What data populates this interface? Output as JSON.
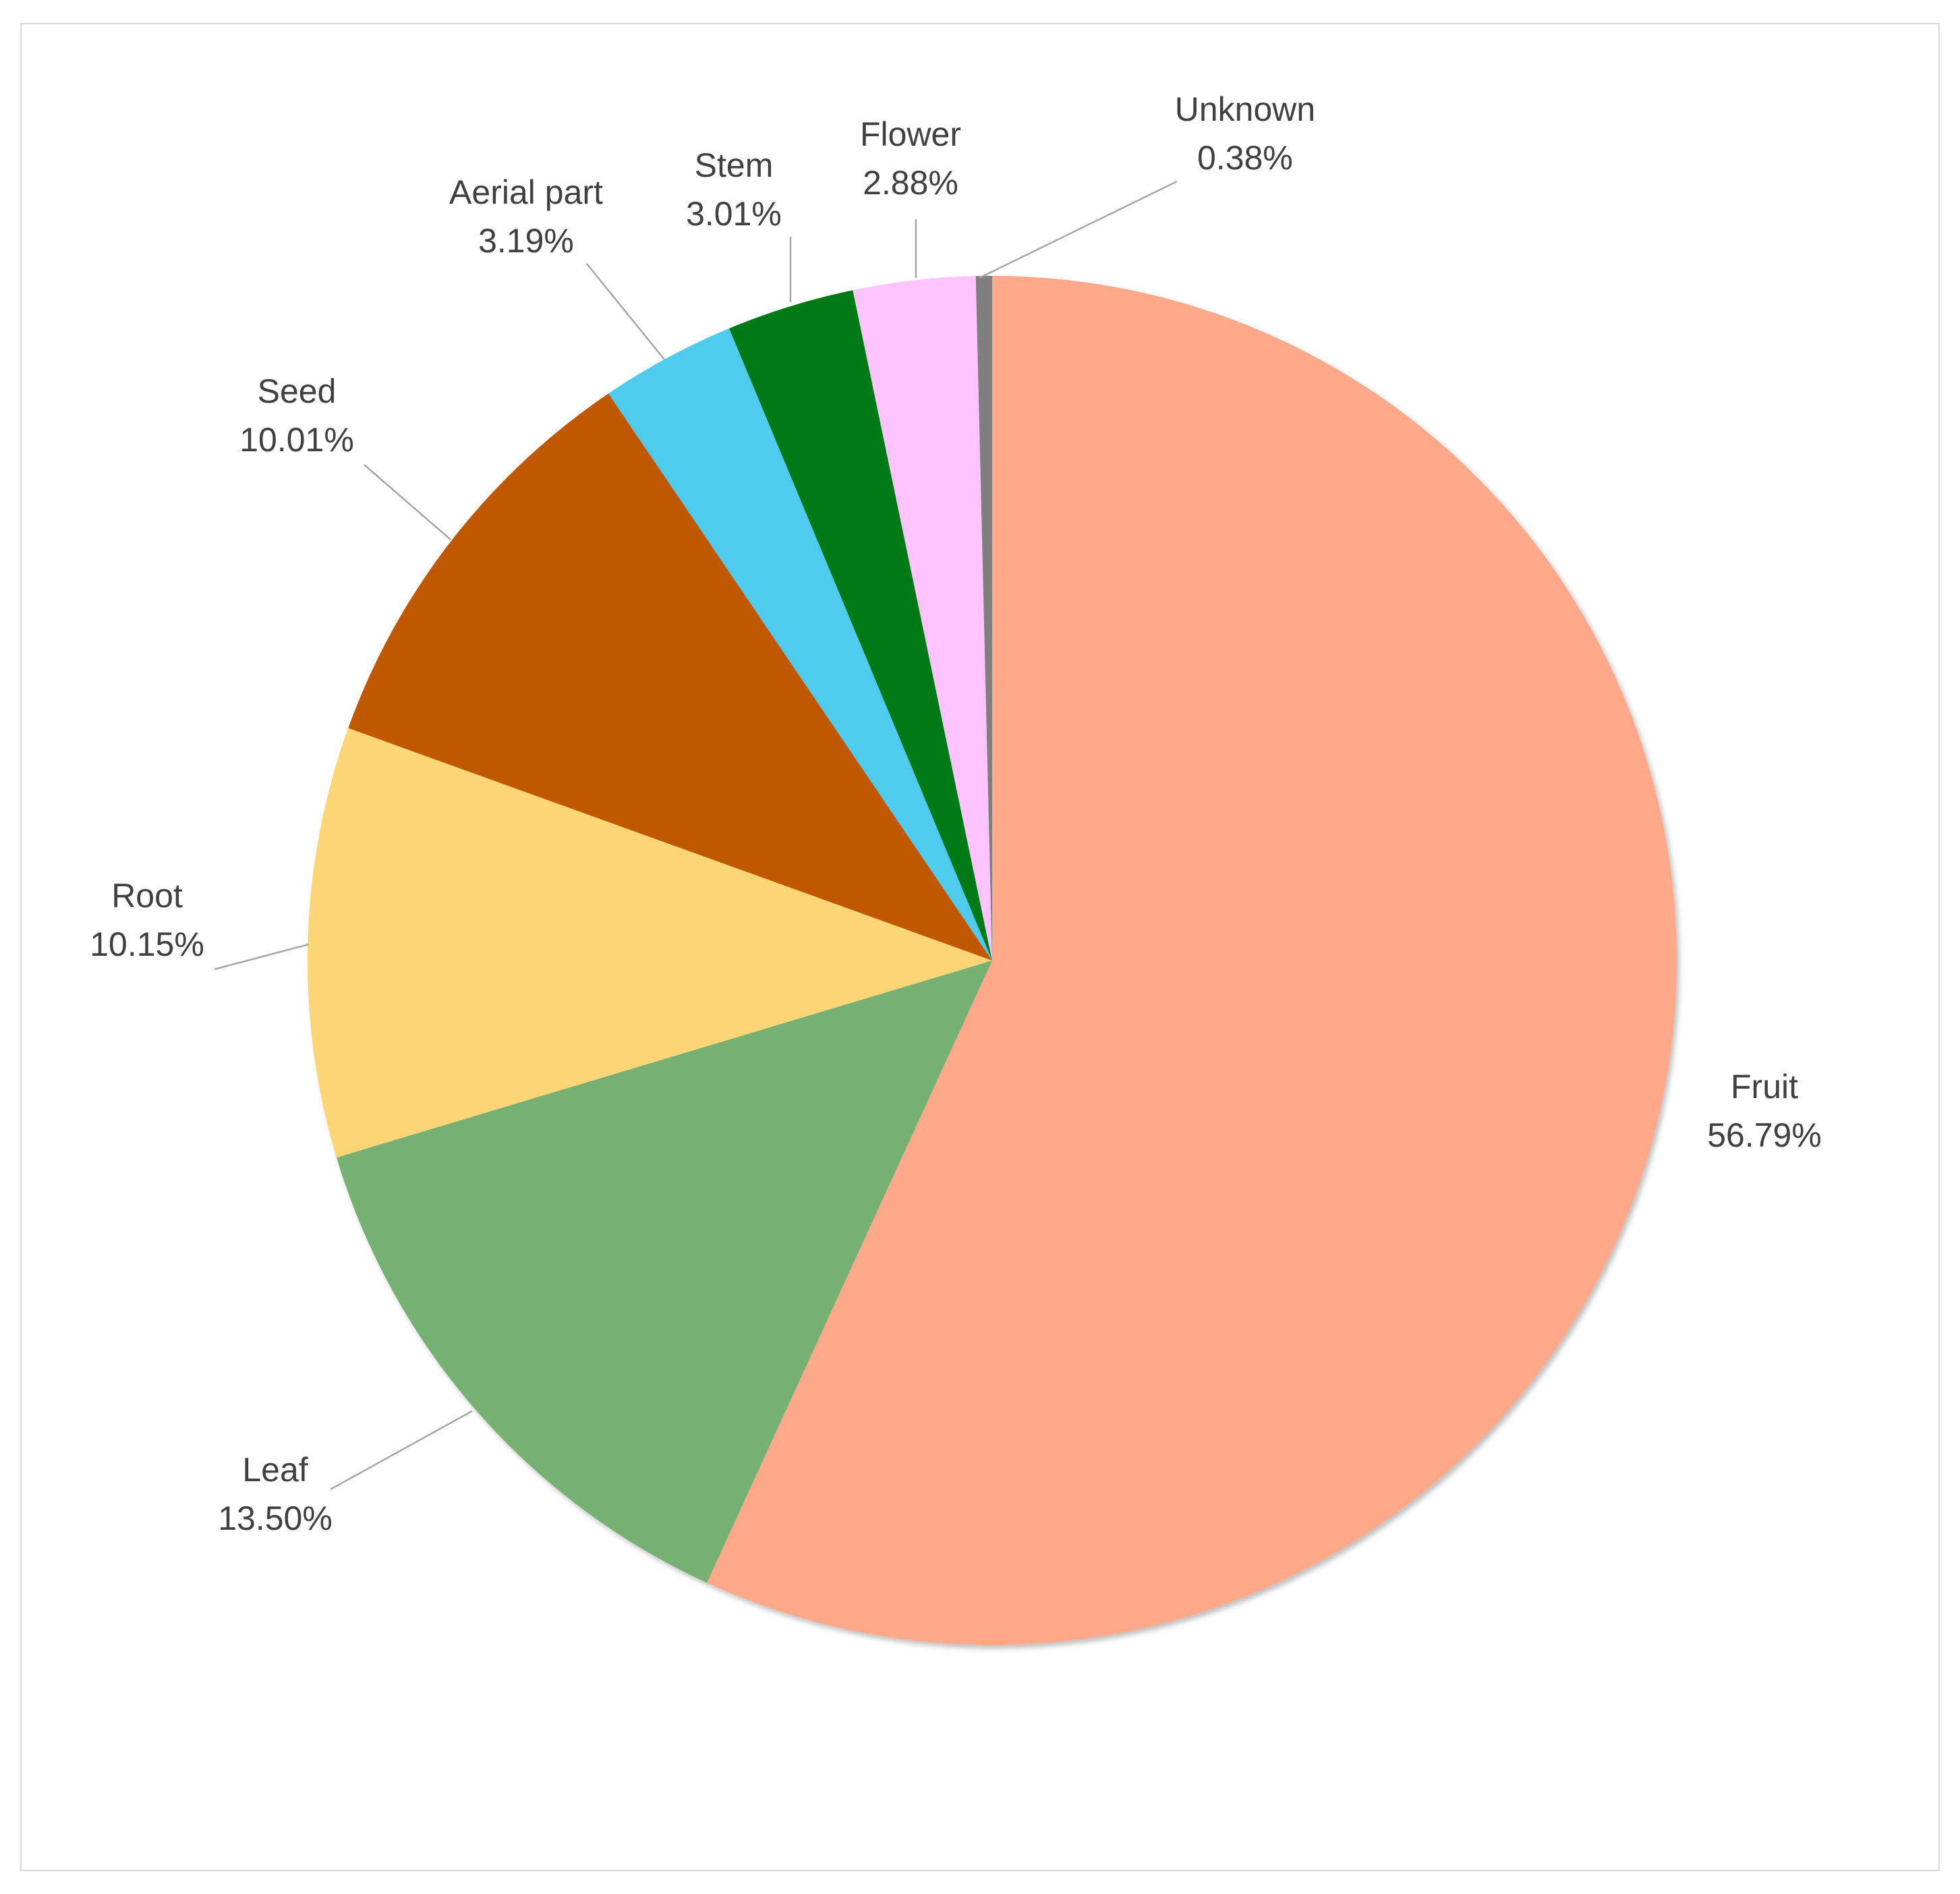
{
  "chart_data": {
    "type": "pie",
    "title": "",
    "start_angle_deg": 0,
    "direction": "clockwise",
    "slices": [
      {
        "label": "Fruit",
        "value": 56.79,
        "value_label": "56.79%",
        "color": "#FFA98A"
      },
      {
        "label": "Leaf",
        "value": 13.5,
        "value_label": "13.50%",
        "color": "#76B173"
      },
      {
        "label": "Root",
        "value": 10.15,
        "value_label": "10.15%",
        "color": "#FCD577"
      },
      {
        "label": "Seed",
        "value": 10.01,
        "value_label": "10.01%",
        "color": "#C05800"
      },
      {
        "label": "Aerial part",
        "value": 3.19,
        "value_label": "3.19%",
        "color": "#4FCBEE"
      },
      {
        "label": "Stem",
        "value": 3.01,
        "value_label": "3.01%",
        "color": "#007A14"
      },
      {
        "label": "Flower",
        "value": 2.88,
        "value_label": "2.88%",
        "color": "#FFC3FF"
      },
      {
        "label": "Unknown",
        "value": 0.38,
        "value_label": "0.38%",
        "color": "#7F7F7F"
      }
    ],
    "legend": "none",
    "data_labels": "outside with leader lines"
  }
}
